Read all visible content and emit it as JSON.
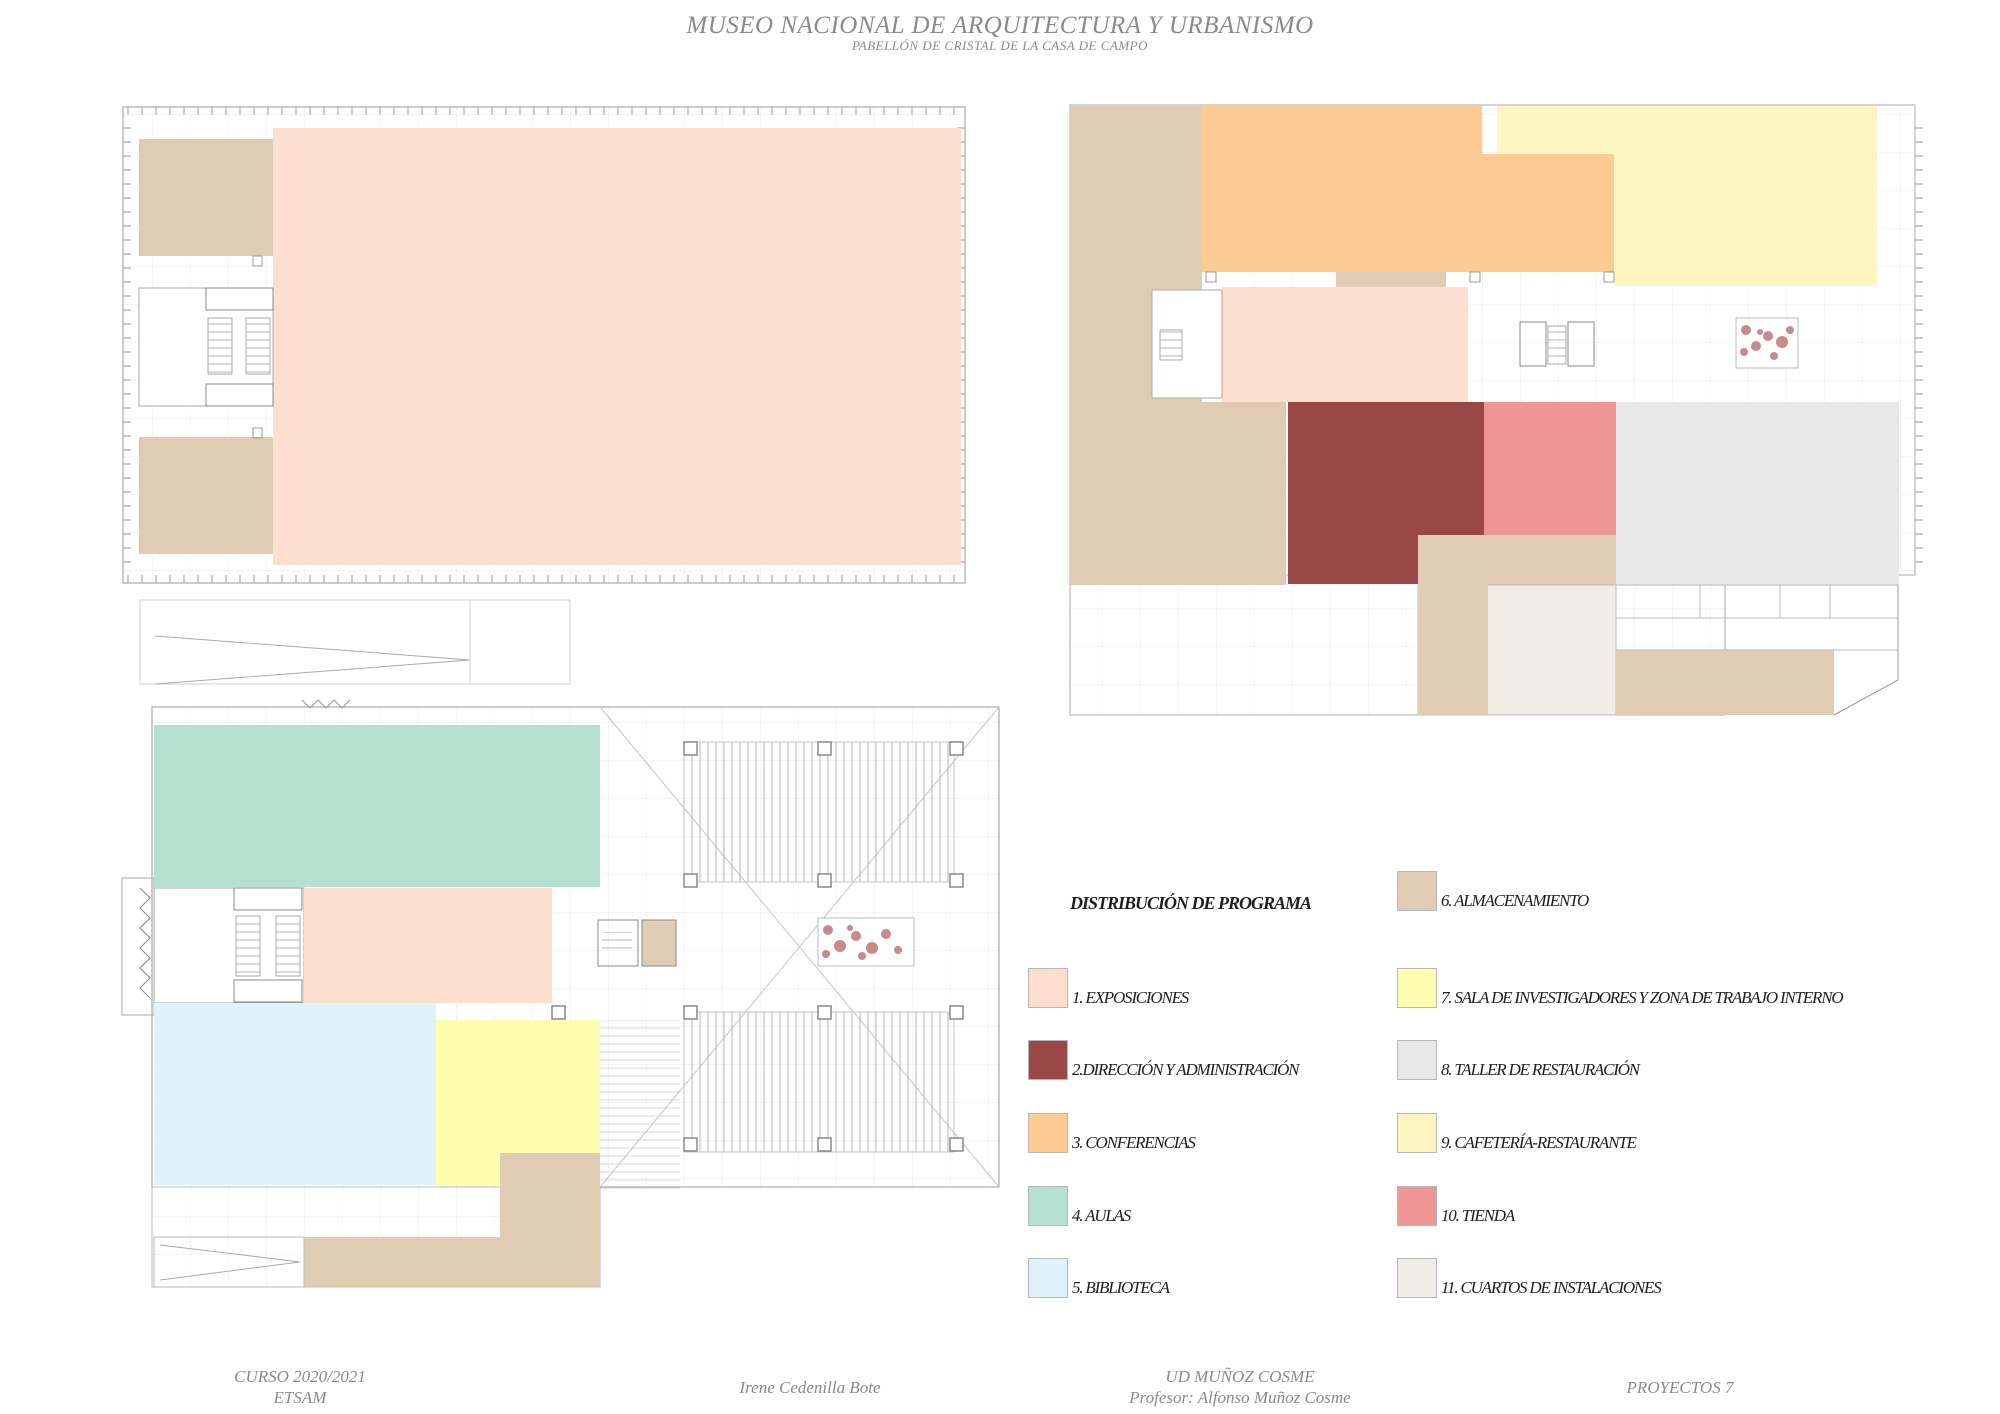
{
  "header": {
    "title": "MUSEO NACIONAL DE ARQUITECTURA Y URBANISMO",
    "subtitle": "PABELLÓN DE CRISTAL DE LA CASA DE CAMPO"
  },
  "legend": {
    "heading": "DISTRIBUCIÓN DE PROGRAMA",
    "items": [
      {
        "label": "1. EXPOSICIONES",
        "color": "#FEDECE"
      },
      {
        "label": "2.DIRECCIÓN Y ADMINISTRACIÓN",
        "color": "#9A4748"
      },
      {
        "label": "3. CONFERENCIAS",
        "color": "#FECB94"
      },
      {
        "label": "4. AULAS",
        "color": "#B4E1D0"
      },
      {
        "label": "5. BIBLIOTECA",
        "color": "#E2F2FC"
      },
      {
        "label": "6. ALMACENAMIENTO",
        "color": "#E0CCB4"
      },
      {
        "label": "7. SALA DE INVESTIGADORES Y ZONA DE TRABAJO INTERNO",
        "color": "#FEFEB0"
      },
      {
        "label": "8. TALLER DE RESTAURACIÓN",
        "color": "#E8E8E8"
      },
      {
        "label": "9. CAFETERÍA-RESTAURANTE",
        "color": "#FEF6C0"
      },
      {
        "label": "10. TIENDA",
        "color": "#EE9696"
      },
      {
        "label": "11. CUARTOS DE INSTALACIONES",
        "color": "#F0EDE6"
      }
    ]
  },
  "footer": {
    "course": "CURSO 2020/2021",
    "school": "ETSAM",
    "author": "Irene Cedenilla Bote",
    "unit": "UD MUÑOZ COSME",
    "professor": "Profesor: Alfonso Muñoz Cosme",
    "subject": "PROYECTOS 7"
  }
}
